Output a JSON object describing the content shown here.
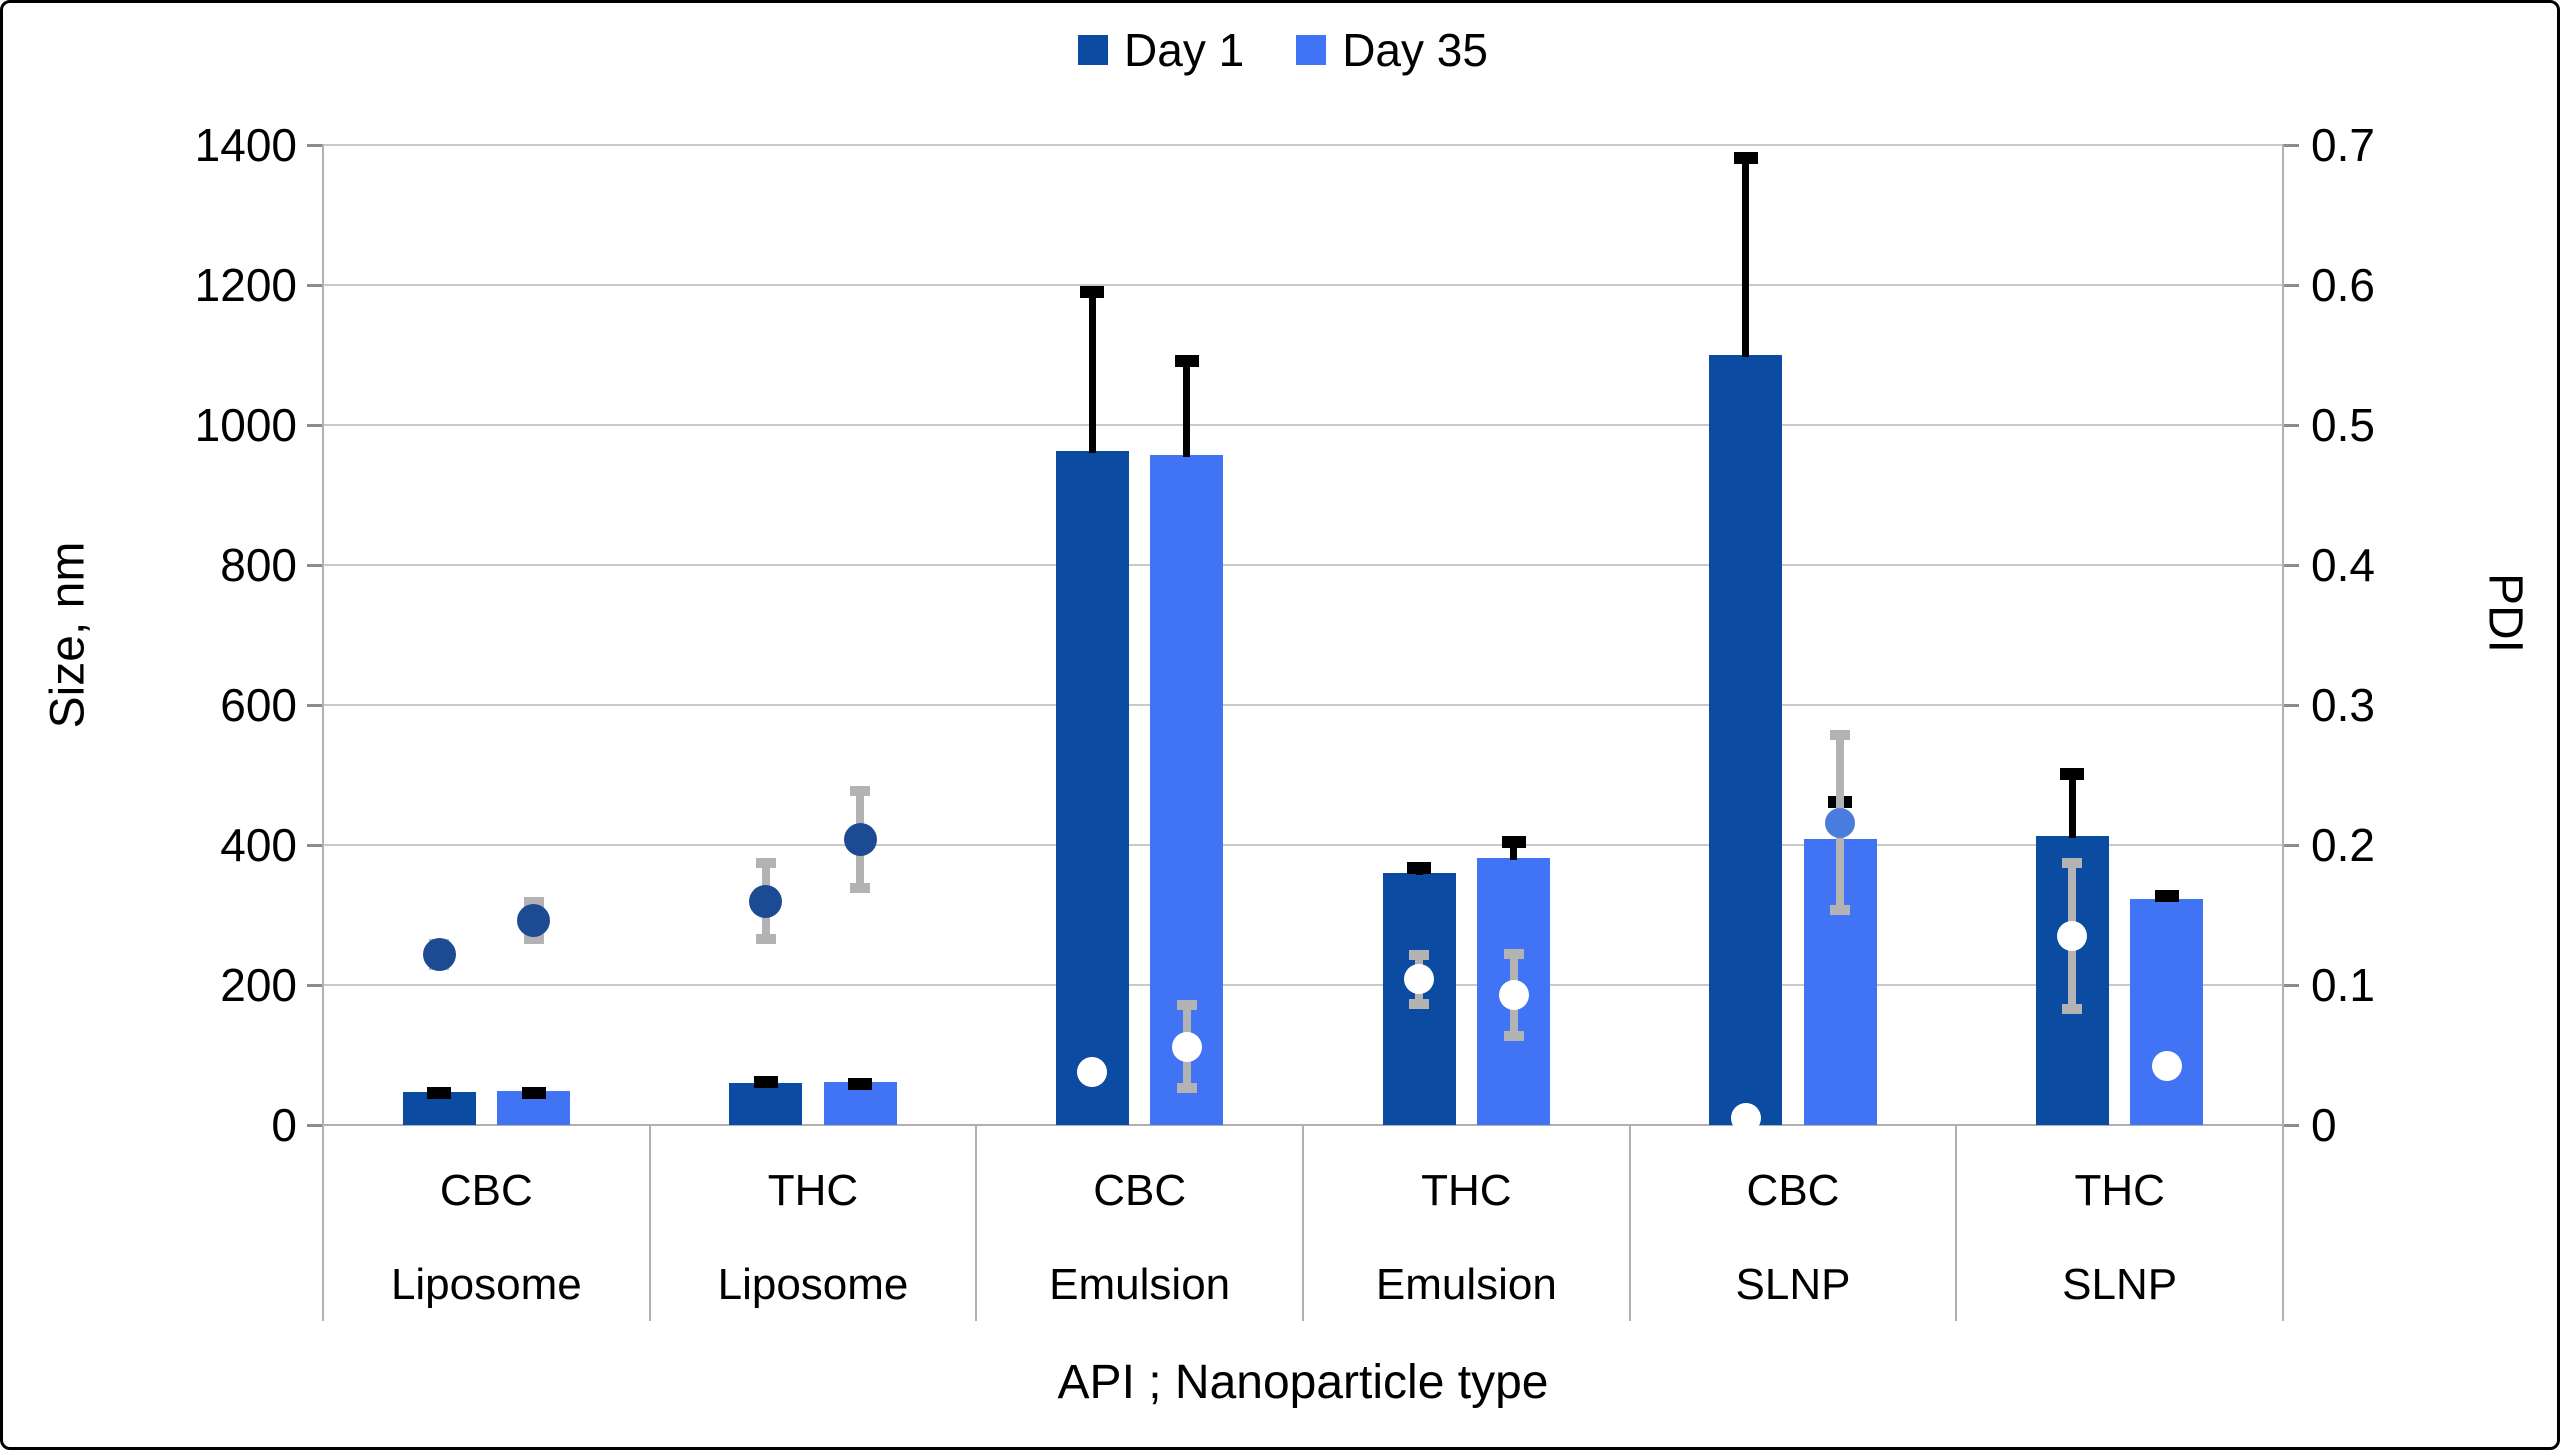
{
  "chart_data": {
    "type": "bar",
    "note": "Grouped bar chart (particle size, left axis) with overlaid scatter markers + error bars (PDI, right axis)",
    "legend": [
      {
        "label": "Day 1",
        "color_key": "day1"
      },
      {
        "label": "Day 35",
        "color_key": "day35"
      }
    ],
    "x_axis": {
      "label": "API ; Nanoparticle type",
      "groups": [
        {
          "api": "CBC",
          "type": "Liposome"
        },
        {
          "api": "THC",
          "type": "Liposome"
        },
        {
          "api": "CBC",
          "type": "Emulsion"
        },
        {
          "api": "THC",
          "type": "Emulsion"
        },
        {
          "api": "CBC",
          "type": "SLNP"
        },
        {
          "api": "THC",
          "type": "SLNP"
        }
      ]
    },
    "y_left": {
      "label": "Size, nm",
      "min": 0,
      "max": 1400,
      "step": 200,
      "ticks": [
        0,
        200,
        400,
        600,
        800,
        1000,
        1200,
        1400
      ]
    },
    "y_right": {
      "label": "PDI",
      "min": 0,
      "max": 0.7,
      "step": 0.1,
      "ticks": [
        0,
        0.1,
        0.2,
        0.3,
        0.4,
        0.5,
        0.6,
        0.7
      ]
    },
    "size_series": [
      {
        "name": "Day 1",
        "color_key": "day1",
        "values": [
          47,
          60,
          963,
          360,
          1100,
          413
        ],
        "err_plus": [
          8,
          10,
          235,
          16,
          290,
          97
        ]
      },
      {
        "name": "Day 35",
        "color_key": "day35",
        "values": [
          48,
          61,
          957,
          381,
          409,
          323
        ],
        "err_plus": [
          7,
          6,
          143,
          32,
          61,
          13
        ]
      }
    ],
    "pdi_series": [
      {
        "name": "Day 1 PDI",
        "values": [
          0.122,
          0.16,
          0.038,
          0.104,
          0.005,
          0.135
        ],
        "err": [
          0.011,
          0.031,
          0,
          0.021,
          0,
          0.056
        ],
        "marker": [
          "navy",
          "navy",
          "white",
          "white",
          "white",
          "white"
        ]
      },
      {
        "name": "Day 35 PDI",
        "values": [
          0.146,
          0.204,
          0.056,
          0.093,
          0.216,
          0.042
        ],
        "err": [
          0.017,
          0.038,
          0.033,
          0.033,
          0.066,
          0
        ],
        "marker": [
          "navy",
          "navy",
          "white",
          "white",
          "blue",
          "white"
        ]
      }
    ],
    "colors": {
      "day1": "#0b4ca2",
      "day35": "#4174f4",
      "navy": "#1c4b94",
      "white": "#ffffff",
      "blue": "#4a7ce0",
      "size_error": "#000000",
      "pdi_error": "#b3b3b3",
      "grid": "#c9c9c9",
      "axis_line": "#b0b0b0",
      "tick": "#8c8c8c",
      "text": "#000000"
    },
    "layout_hints": {
      "grid": "horizontal only",
      "legend_position": "top center"
    }
  }
}
